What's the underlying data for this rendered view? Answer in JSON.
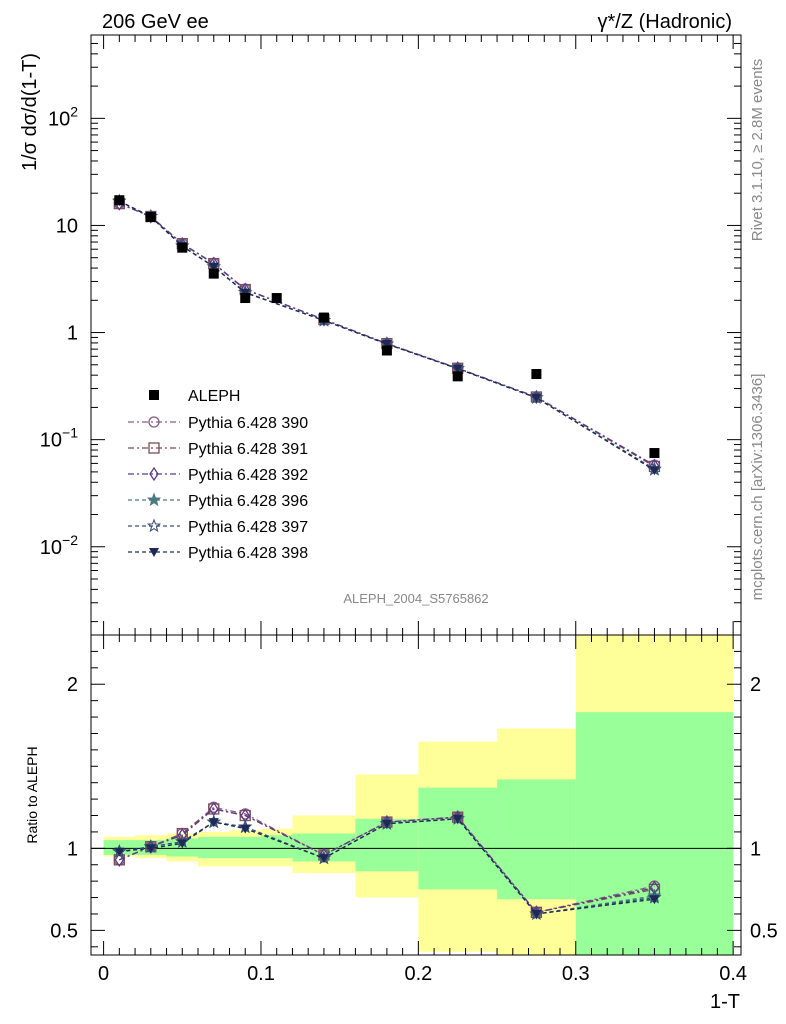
{
  "header": {
    "left": "206 GeV ee",
    "right": "γ*/Z (Hadronic)"
  },
  "side_labels": {
    "rivet": "Rivet 3.1.10, ≥ 2.8M events",
    "mcplots": "mcplots.cern.ch [arXiv:1306.3436]"
  },
  "chart_data": {
    "type": "line",
    "analysis_label": "ALEPH_2004_S5765862",
    "top_panel": {
      "ylabel": "1/σ  dσ/d(1-T)",
      "yscale": "log",
      "ylim": [
        0.0015,
        600
      ],
      "y_ticks": [
        {
          "value": 0.01,
          "base": "10",
          "exp": "−2"
        },
        {
          "value": 0.1,
          "base": "10",
          "exp": "−1"
        },
        {
          "value": 1,
          "base": "1",
          "exp": ""
        },
        {
          "value": 10,
          "base": "10",
          "exp": ""
        },
        {
          "value": 100,
          "base": "10",
          "exp": "2"
        }
      ]
    },
    "ratio_panel": {
      "ylabel": "Ratio to ALEPH",
      "ylim": [
        0.35,
        2.3
      ],
      "y_ticks": [
        {
          "value": 0.5,
          "label": "0.5"
        },
        {
          "value": 1,
          "label": "1"
        },
        {
          "value": 2,
          "label": "2"
        }
      ]
    },
    "x_axis": {
      "label": "1-T",
      "xlim": [
        -0.008,
        0.405
      ],
      "ticks": [
        {
          "value": 0,
          "label": "0"
        },
        {
          "value": 0.1,
          "label": "0.1"
        },
        {
          "value": 0.2,
          "label": "0.2"
        },
        {
          "value": 0.3,
          "label": "0.3"
        },
        {
          "value": 0.4,
          "label": "0.4"
        }
      ]
    },
    "bins": [
      {
        "lo": 0.0,
        "hi": 0.02,
        "band_stat": [
          0.96,
          1.05
        ],
        "band_total": [
          0.95,
          1.07
        ]
      },
      {
        "lo": 0.02,
        "hi": 0.04,
        "band_stat": [
          0.96,
          1.05
        ],
        "band_total": [
          0.94,
          1.08
        ]
      },
      {
        "lo": 0.04,
        "hi": 0.06,
        "band_stat": [
          0.95,
          1.06
        ],
        "band_total": [
          0.92,
          1.09
        ]
      },
      {
        "lo": 0.06,
        "hi": 0.08,
        "band_stat": [
          0.94,
          1.07
        ],
        "band_total": [
          0.89,
          1.1
        ]
      },
      {
        "lo": 0.08,
        "hi": 0.1,
        "band_stat": [
          0.94,
          1.07
        ],
        "band_total": [
          0.89,
          1.11
        ]
      },
      {
        "lo": 0.1,
        "hi": 0.12,
        "band_stat": [
          0.94,
          1.08
        ],
        "band_total": [
          0.89,
          1.12
        ]
      },
      {
        "lo": 0.12,
        "hi": 0.16,
        "band_stat": [
          0.92,
          1.09
        ],
        "band_total": [
          0.85,
          1.2
        ]
      },
      {
        "lo": 0.16,
        "hi": 0.2,
        "band_stat": [
          0.86,
          1.18
        ],
        "band_total": [
          0.7,
          1.45
        ]
      },
      {
        "lo": 0.2,
        "hi": 0.25,
        "band_stat": [
          0.75,
          1.37
        ],
        "band_total": [
          0.37,
          1.65
        ]
      },
      {
        "lo": 0.25,
        "hi": 0.3,
        "band_stat": [
          0.69,
          1.42
        ],
        "band_total": [
          0.35,
          1.73
        ]
      },
      {
        "lo": 0.3,
        "hi": 0.4,
        "band_stat": [
          0.35,
          1.83
        ],
        "band_total": [
          0.35,
          2.3
        ]
      }
    ],
    "data_series": {
      "name": "ALEPH",
      "x": [
        0.01,
        0.03,
        0.05,
        0.07,
        0.09,
        0.11,
        0.14,
        0.18,
        0.225,
        0.275,
        0.35
      ],
      "y": [
        17.2,
        12.0,
        6.2,
        3.55,
        2.1,
        2.1,
        1.38,
        0.68,
        0.39,
        0.41,
        0.075
      ]
    },
    "series": [
      {
        "name": "Pythia 6.428 390",
        "color": "#8a5a85",
        "marker": "circle-open",
        "ratio": [
          0.93,
          1.01,
          1.09,
          1.25,
          1.21,
          null,
          0.96,
          1.16,
          1.19,
          0.61,
          0.77
        ]
      },
      {
        "name": "Pythia 6.428 391",
        "color": "#7a4e5a",
        "marker": "square-open",
        "ratio": [
          0.93,
          1.01,
          1.09,
          1.24,
          1.2,
          null,
          0.96,
          1.16,
          1.19,
          0.61,
          0.75
        ]
      },
      {
        "name": "Pythia 6.428 392",
        "color": "#5a3a8a",
        "marker": "diamond-open",
        "ratio": [
          0.93,
          1.01,
          1.08,
          1.24,
          1.2,
          null,
          0.96,
          1.16,
          1.19,
          0.61,
          0.76
        ]
      },
      {
        "name": "Pythia 6.428 396",
        "color": "#4a7a80",
        "marker": "star-filled",
        "ratio": [
          0.98,
          1.01,
          1.04,
          1.16,
          1.13,
          null,
          0.94,
          1.15,
          1.18,
          0.6,
          0.71
        ]
      },
      {
        "name": "Pythia 6.428 397",
        "color": "#3a5078",
        "marker": "star-open",
        "ratio": [
          0.98,
          1.01,
          1.04,
          1.16,
          1.13,
          null,
          0.94,
          1.15,
          1.18,
          0.6,
          0.7
        ]
      },
      {
        "name": "Pythia 6.428 398",
        "color": "#1e2a55",
        "marker": "triangle-down-filled",
        "ratio": [
          0.98,
          1.0,
          1.03,
          1.16,
          1.12,
          null,
          0.94,
          1.15,
          1.18,
          0.6,
          0.69
        ]
      }
    ]
  }
}
